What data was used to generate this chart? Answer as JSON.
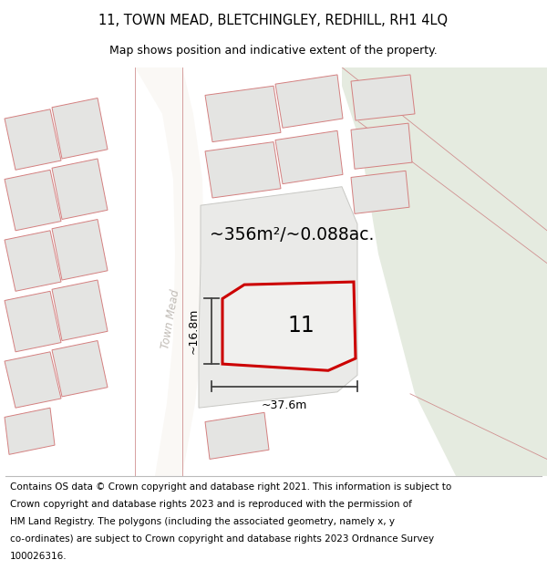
{
  "title": "11, TOWN MEAD, BLETCHINGLEY, REDHILL, RH1 4LQ",
  "subtitle": "Map shows position and indicative extent of the property.",
  "footer_line1": "Contains OS data © Crown copyright and database right 2021. This information is subject to",
  "footer_line2": "Crown copyright and database rights 2023 and is reproduced with the permission of",
  "footer_line3": "HM Land Registry. The polygons (including the associated geometry, namely x, y",
  "footer_line4": "co-ordinates) are subject to Crown copyright and database rights 2023 Ordnance Survey",
  "footer_line5": "100026316.",
  "area_label": "~356m²/~0.088ac.",
  "width_label": "~37.6m",
  "height_label": "~16.8m",
  "property_number": "11",
  "road_label": "Town Mead",
  "map_bg": "#f2f0ed",
  "block_color": "#e4e4e2",
  "block_edge_color": "#d48080",
  "road_color": "#faf8f5",
  "property_fill": "#eeeeec",
  "property_edge": "#cc0000",
  "greenish_bg": "#e5ebe0",
  "dim_color": "#444444",
  "title_fontsize": 10.5,
  "subtitle_fontsize": 9.0,
  "footer_fontsize": 7.5
}
